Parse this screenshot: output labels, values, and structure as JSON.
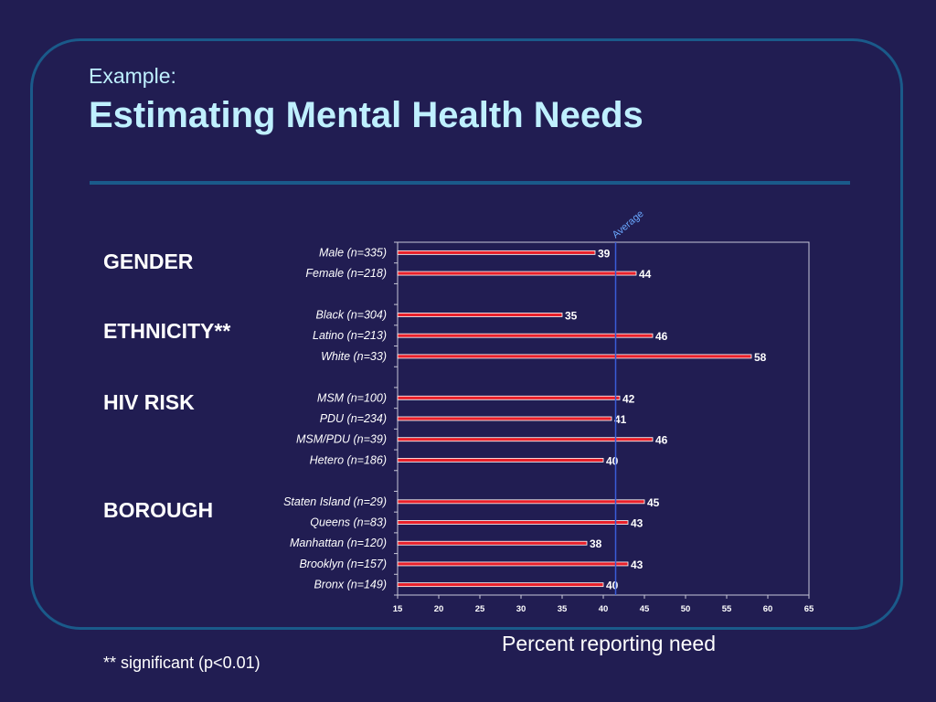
{
  "slide": {
    "subtitle": "Example:",
    "title": "Estimating Mental Health Needs",
    "groups": [
      {
        "key": "gender",
        "label": "GENDER"
      },
      {
        "key": "ethnicity",
        "label": "ETHNICITY**"
      },
      {
        "key": "hiv",
        "label": "HIV RISK"
      },
      {
        "key": "borough",
        "label": "BOROUGH"
      }
    ],
    "footnote": "** significant (p<0.01)"
  },
  "chart_data": {
    "type": "bar",
    "orientation": "horizontal",
    "xlabel": "Percent reporting need",
    "xlim": [
      15,
      65
    ],
    "xticks": [
      15,
      20,
      25,
      30,
      35,
      40,
      45,
      50,
      55,
      60,
      65
    ],
    "categories": [
      "Male (n=335)",
      "Female (n=218)",
      "Black (n=304)",
      "Latino (n=213)",
      "White (n=33)",
      "MSM (n=100)",
      "PDU (n=234)",
      "MSM/PDU (n=39)",
      "Hetero (n=186)",
      "Staten Island (n=29)",
      "Queens (n=83)",
      "Manhattan (n=120)",
      "Brooklyn (n=157)",
      "Bronx (n=149)"
    ],
    "values": [
      39,
      44,
      35,
      46,
      58,
      42,
      41,
      46,
      40,
      45,
      43,
      38,
      43,
      40
    ],
    "reference_line": {
      "label": "Average",
      "value": 41.5
    },
    "colors": {
      "bar": "#e8202a",
      "bar_edge": "#ffffff",
      "reference": "#3a5cd8",
      "axis": "#c8c8d8"
    }
  }
}
